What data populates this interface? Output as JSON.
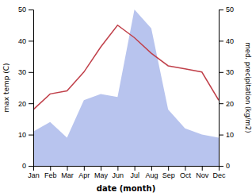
{
  "chart_data": {
    "type": "line",
    "categories": [
      "Jan",
      "Feb",
      "Mar",
      "Apr",
      "May",
      "Jun",
      "Jul",
      "Aug",
      "Sep",
      "Oct",
      "Nov",
      "Dec"
    ],
    "xlabel": "date (month)",
    "ylabel": "max temp (C)",
    "y2label": "med. precipitation (kg/m2)",
    "series": [
      {
        "type": "area",
        "axis": "y2",
        "color": "#b8c4ee",
        "values": [
          11,
          14,
          9,
          21,
          23,
          22,
          50,
          44,
          18,
          12,
          10,
          9
        ]
      },
      {
        "type": "line",
        "color": "#c0404a",
        "values": [
          18,
          23,
          24,
          30,
          38,
          45,
          41,
          36,
          32,
          31,
          30,
          21
        ]
      }
    ],
    "ylim": [
      0,
      50
    ],
    "yticks": [
      0,
      10,
      20,
      30,
      40,
      50
    ],
    "y2lim": [
      0,
      50
    ],
    "y2ticks": [
      0,
      10,
      20,
      30,
      40,
      50
    ]
  }
}
